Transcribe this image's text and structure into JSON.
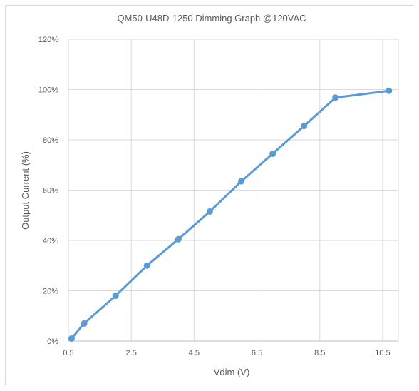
{
  "chart_data": {
    "type": "line",
    "title": "QM50-U48D-1250 Dimming Graph @120VAC",
    "xlabel": "Vdim (V)",
    "ylabel": "Output Current (%)",
    "xlim": [
      0.5,
      11.0
    ],
    "ylim": [
      0,
      120
    ],
    "x_ticks": [
      "0.5",
      "2.5",
      "4.5",
      "6.5",
      "8.5",
      "10.5"
    ],
    "y_ticks": [
      "0%",
      "20%",
      "40%",
      "60%",
      "80%",
      "100%",
      "120%"
    ],
    "grid": true,
    "legend": "none",
    "series_color": "#5b9bd5",
    "series": [
      {
        "x": [
          0.6,
          1.0,
          2.0,
          3.0,
          4.0,
          5.0,
          6.0,
          7.0,
          8.0,
          9.0,
          10.7
        ],
        "y": [
          1,
          7,
          18,
          30,
          40.5,
          51.5,
          63.5,
          74.5,
          85.5,
          96.8,
          99.5
        ]
      }
    ]
  }
}
